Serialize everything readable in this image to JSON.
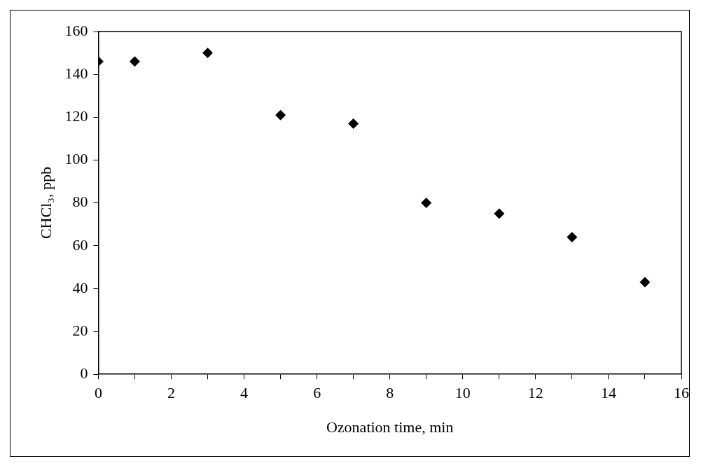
{
  "chart_data": {
    "type": "scatter",
    "xlabel": "Ozonation time, min",
    "ylabel": "CHCl₃, ppb",
    "x": [
      0,
      1,
      3,
      5,
      7,
      9,
      11,
      13,
      15
    ],
    "values": [
      146,
      146,
      150,
      121,
      117,
      80,
      75,
      64,
      43
    ],
    "color": "#000000",
    "marker": "diamond",
    "xlim": [
      0,
      16
    ],
    "xticks": [
      0,
      {
        "value": 1,
        "label": null
      },
      2,
      {
        "value": 3,
        "label": null
      },
      4,
      {
        "value": 5,
        "label": null
      },
      6,
      {
        "value": 7,
        "label": null
      },
      8,
      {
        "value": 9,
        "label": null
      },
      10,
      {
        "value": 11,
        "label": null
      },
      12,
      {
        "value": 13,
        "label": null
      },
      14,
      {
        "value": 15,
        "label": null
      },
      16
    ],
    "ylim": [
      0,
      160
    ],
    "yticks": [
      0,
      20,
      40,
      60,
      80,
      100,
      120,
      140,
      160
    ],
    "grid": false,
    "legend": false
  }
}
